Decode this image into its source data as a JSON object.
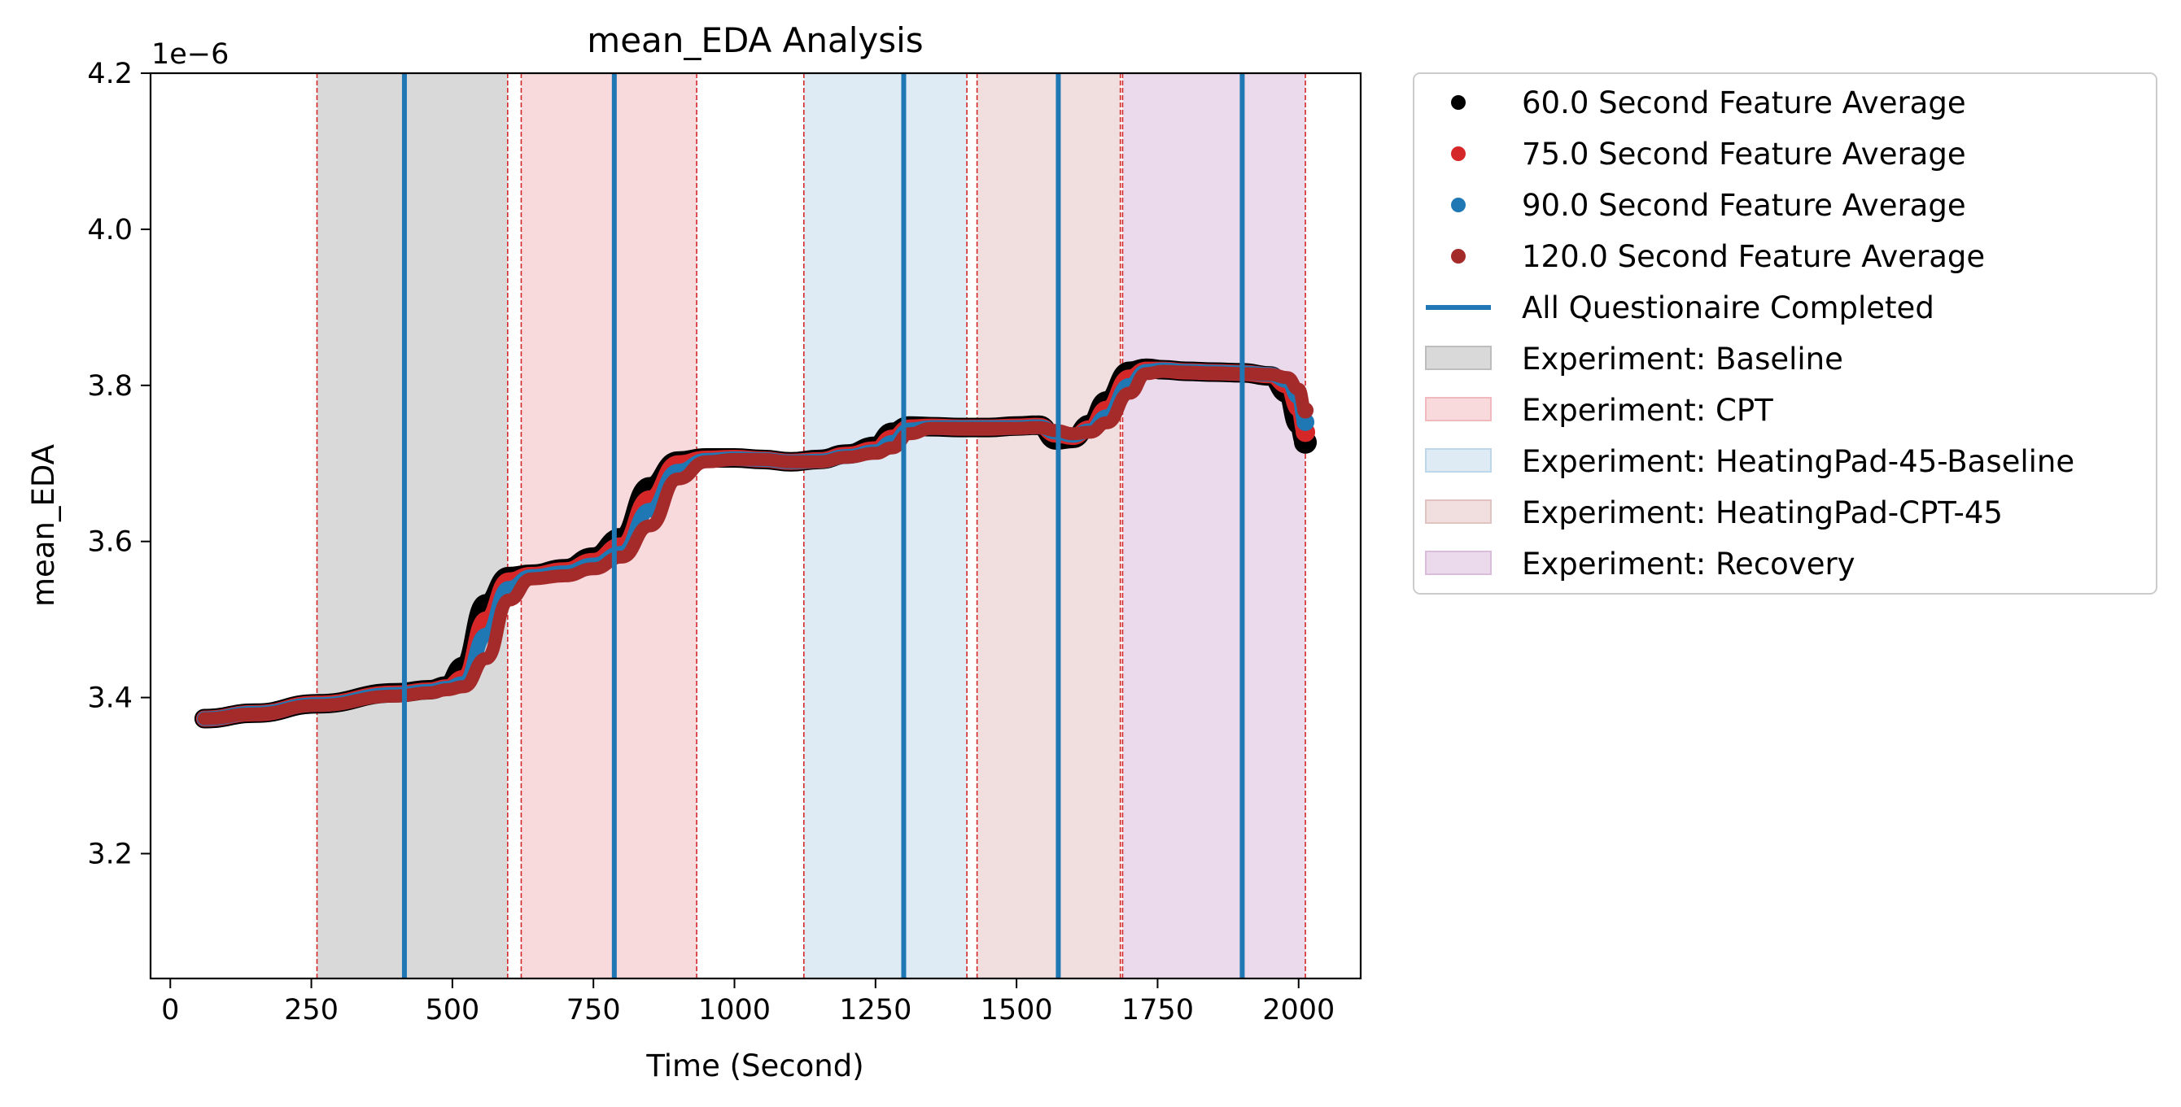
{
  "chart_data": {
    "type": "line",
    "title": "mean_EDA Analysis",
    "xlabel": "Time (Second)",
    "ylabel": "mean_EDA",
    "y_offset_label": "1e−6",
    "xlim": [
      -35,
      2110
    ],
    "ylim": [
      3.04,
      4.2
    ],
    "x_ticks": [
      0,
      250,
      500,
      750,
      1000,
      1250,
      1500,
      1750,
      2000
    ],
    "x_tick_labels": [
      "0",
      "250",
      "500",
      "750",
      "1000",
      "1250",
      "1500",
      "1750",
      "2000"
    ],
    "y_ticks": [
      3.2,
      3.4,
      3.6,
      3.8,
      4.0,
      4.2
    ],
    "y_tick_labels": [
      "3.2",
      "3.4",
      "3.6",
      "3.8",
      "4.0",
      "4.2"
    ],
    "grid": false,
    "legend_position": "outside-right",
    "shaded_regions": [
      {
        "name": "Experiment: Baseline",
        "x0": 260,
        "x1": 598,
        "color": "#d9d9d9"
      },
      {
        "name": "Experiment: CPT",
        "x0": 622,
        "x1": 933,
        "color": "#f8dadd"
      },
      {
        "name": "Experiment: HeatingPad-45-Baseline",
        "x0": 1123,
        "x1": 1412,
        "color": "#deebf4"
      },
      {
        "name": "Experiment: HeatingPad-CPT-45",
        "x0": 1430,
        "x1": 1684,
        "color": "#f0dfde"
      },
      {
        "name": "Experiment: Recovery",
        "x0": 1688,
        "x1": 2012,
        "color": "#ebdaec"
      }
    ],
    "region_boundary_color": "#d62728",
    "questionnaire_lines": {
      "name": "All Questionaire Completed",
      "x": [
        415,
        787,
        1300,
        1574,
        1900
      ],
      "color": "#1f77b4"
    },
    "series": [
      {
        "name": "60.0 Second Feature Average",
        "color": "#000000",
        "x": [
          60,
          150,
          260,
          400,
          460,
          490,
          520,
          560,
          600,
          640,
          700,
          750,
          800,
          850,
          900,
          950,
          1000,
          1050,
          1100,
          1150,
          1200,
          1250,
          1280,
          1310,
          1350,
          1400,
          1450,
          1500,
          1540,
          1570,
          1600,
          1630,
          1660,
          1700,
          1730,
          1760,
          1800,
          1850,
          1900,
          1950,
          1980,
          2000,
          2012
        ],
        "values": [
          3.373,
          3.38,
          3.392,
          3.406,
          3.41,
          3.415,
          3.44,
          3.52,
          3.555,
          3.558,
          3.565,
          3.58,
          3.605,
          3.67,
          3.703,
          3.707,
          3.707,
          3.705,
          3.702,
          3.705,
          3.712,
          3.722,
          3.74,
          3.748,
          3.747,
          3.746,
          3.746,
          3.748,
          3.749,
          3.73,
          3.732,
          3.75,
          3.78,
          3.818,
          3.822,
          3.82,
          3.818,
          3.817,
          3.816,
          3.812,
          3.79,
          3.75,
          3.727
        ]
      },
      {
        "name": "75.0 Second Feature Average",
        "color": "#d62728",
        "x": [
          60,
          150,
          260,
          400,
          460,
          490,
          520,
          560,
          600,
          640,
          700,
          750,
          800,
          850,
          900,
          950,
          1000,
          1050,
          1100,
          1150,
          1200,
          1250,
          1280,
          1310,
          1350,
          1400,
          1450,
          1500,
          1540,
          1570,
          1600,
          1630,
          1660,
          1700,
          1730,
          1760,
          1800,
          1850,
          1900,
          1950,
          1980,
          2000,
          2012
        ],
        "values": [
          3.373,
          3.38,
          3.392,
          3.405,
          3.409,
          3.413,
          3.425,
          3.5,
          3.55,
          3.557,
          3.563,
          3.575,
          3.595,
          3.655,
          3.7,
          3.706,
          3.707,
          3.705,
          3.702,
          3.704,
          3.711,
          3.718,
          3.733,
          3.746,
          3.747,
          3.746,
          3.746,
          3.747,
          3.748,
          3.737,
          3.734,
          3.745,
          3.77,
          3.81,
          3.82,
          3.82,
          3.818,
          3.817,
          3.816,
          3.813,
          3.8,
          3.77,
          3.74
        ]
      },
      {
        "name": "90.0 Second Feature Average",
        "color": "#1f77b4",
        "x": [
          60,
          150,
          260,
          400,
          460,
          490,
          520,
          560,
          600,
          640,
          700,
          750,
          800,
          850,
          900,
          950,
          1000,
          1050,
          1100,
          1150,
          1200,
          1250,
          1280,
          1310,
          1350,
          1400,
          1450,
          1500,
          1540,
          1570,
          1600,
          1630,
          1660,
          1700,
          1730,
          1760,
          1800,
          1850,
          1900,
          1950,
          1980,
          2000,
          2012
        ],
        "values": [
          3.373,
          3.38,
          3.391,
          3.404,
          3.408,
          3.412,
          3.418,
          3.48,
          3.54,
          3.555,
          3.56,
          3.57,
          3.585,
          3.64,
          3.69,
          3.704,
          3.706,
          3.705,
          3.702,
          3.703,
          3.709,
          3.715,
          3.727,
          3.743,
          3.746,
          3.746,
          3.746,
          3.746,
          3.747,
          3.74,
          3.736,
          3.742,
          3.76,
          3.8,
          3.818,
          3.82,
          3.818,
          3.817,
          3.816,
          3.814,
          3.806,
          3.785,
          3.753
        ]
      },
      {
        "name": "120.0 Second Feature Average",
        "color": "#a52a2a",
        "x": [
          60,
          150,
          260,
          400,
          460,
          490,
          520,
          560,
          600,
          640,
          700,
          750,
          800,
          850,
          900,
          950,
          1000,
          1050,
          1100,
          1150,
          1200,
          1250,
          1280,
          1310,
          1350,
          1400,
          1450,
          1500,
          1540,
          1570,
          1600,
          1630,
          1660,
          1700,
          1730,
          1760,
          1800,
          1850,
          1900,
          1950,
          1980,
          2000,
          2012
        ],
        "values": [
          3.373,
          3.379,
          3.39,
          3.402,
          3.406,
          3.41,
          3.414,
          3.45,
          3.525,
          3.552,
          3.556,
          3.565,
          3.58,
          3.62,
          3.68,
          3.702,
          3.705,
          3.705,
          3.702,
          3.702,
          3.708,
          3.713,
          3.72,
          3.738,
          3.745,
          3.745,
          3.745,
          3.745,
          3.746,
          3.742,
          3.738,
          3.74,
          3.752,
          3.79,
          3.815,
          3.818,
          3.817,
          3.816,
          3.815,
          3.814,
          3.81,
          3.795,
          3.768
        ]
      }
    ]
  },
  "legend": {
    "items": [
      {
        "label": "60.0 Second Feature Average",
        "kind": "dot",
        "color": "#000000"
      },
      {
        "label": "75.0 Second Feature Average",
        "kind": "dot",
        "color": "#d62728"
      },
      {
        "label": "90.0 Second Feature Average",
        "kind": "dot",
        "color": "#1f77b4"
      },
      {
        "label": "120.0 Second Feature Average",
        "kind": "dot",
        "color": "#a52a2a"
      },
      {
        "label": "All Questionaire Completed",
        "kind": "line",
        "color": "#1f77b4"
      },
      {
        "label": "Experiment: Baseline",
        "kind": "patch",
        "color": "#d9d9d9",
        "edge": "#bdbdbd"
      },
      {
        "label": "Experiment: CPT",
        "kind": "patch",
        "color": "#f8dadd",
        "edge": "#f0b9be"
      },
      {
        "label": "Experiment: HeatingPad-45-Baseline",
        "kind": "patch",
        "color": "#deebf4",
        "edge": "#bcd6ea"
      },
      {
        "label": "Experiment: HeatingPad-CPT-45",
        "kind": "patch",
        "color": "#f0dfde",
        "edge": "#e3c3c1"
      },
      {
        "label": "Experiment: Recovery",
        "kind": "patch",
        "color": "#ebdaec",
        "edge": "#d9bddb"
      }
    ]
  }
}
